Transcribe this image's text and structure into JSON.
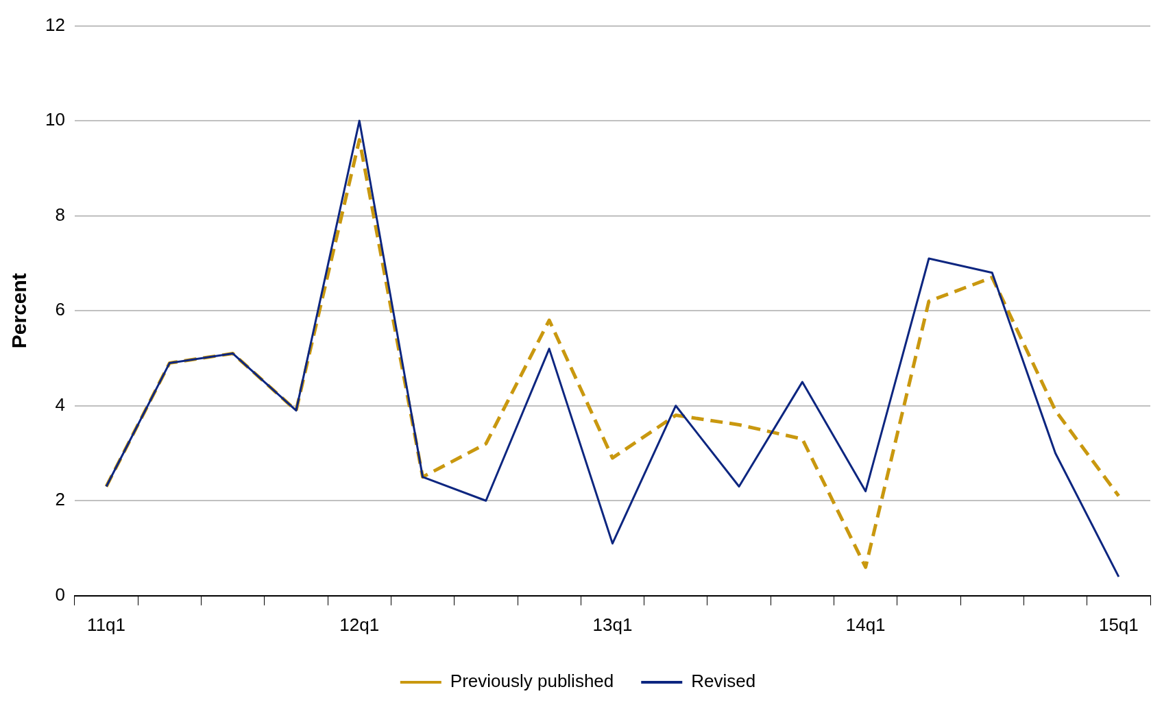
{
  "chart_data": {
    "type": "line",
    "ylabel": "Percent",
    "categories": [
      "11q1",
      null,
      null,
      null,
      "12q1",
      null,
      null,
      null,
      "13q1",
      null,
      null,
      null,
      "14q1",
      null,
      null,
      null,
      "15q1"
    ],
    "series": [
      {
        "name": "Previously published",
        "color": "#c9980f",
        "line_style": "dashed",
        "values": [
          2.3,
          4.9,
          5.1,
          3.9,
          9.6,
          2.5,
          3.2,
          5.8,
          2.9,
          3.8,
          3.6,
          3.3,
          0.6,
          6.2,
          6.7,
          3.9,
          2.1
        ]
      },
      {
        "name": "Revised",
        "color": "#0d2680",
        "line_style": "solid",
        "values": [
          2.3,
          4.9,
          5.1,
          3.9,
          10.0,
          2.5,
          2.0,
          5.2,
          1.1,
          4.0,
          2.3,
          4.5,
          2.2,
          7.1,
          6.8,
          3.0,
          0.4
        ]
      }
    ],
    "ylim": [
      0,
      12
    ],
    "yticks": [
      0,
      2,
      4,
      6,
      8,
      10,
      12
    ],
    "grid": "y",
    "legend": "bottom",
    "marker": "none"
  }
}
